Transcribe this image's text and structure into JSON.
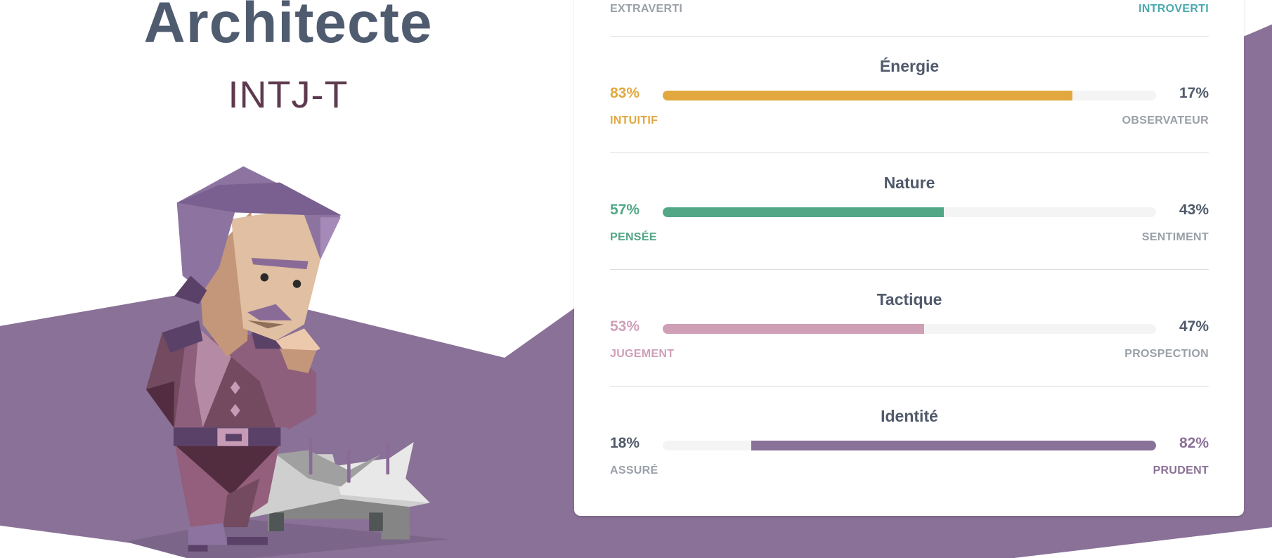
{
  "header": {
    "title": "Architecte",
    "code": "INTJ-T"
  },
  "colors": {
    "background": "#8a7197",
    "mind": "#4aa9ae",
    "energy": "#e2a83f",
    "nature": "#51a786",
    "tactics": "#cf9fb6",
    "identity": "#8a7197",
    "neutral": "#9aa0a8",
    "dark_text": "#505a6b"
  },
  "mind": {
    "left_label": "EXTRAVERTI",
    "right_label": "INTROVERTI"
  },
  "traits": [
    {
      "title": "Énergie",
      "left_pct": "83%",
      "right_pct": "17%",
      "left_label": "INTUITIF",
      "right_label": "OBSERVATEUR",
      "value": 83,
      "dominant": "left",
      "color": "#e2a83f"
    },
    {
      "title": "Nature",
      "left_pct": "57%",
      "right_pct": "43%",
      "left_label": "PENSÉE",
      "right_label": "SENTIMENT",
      "value": 57,
      "dominant": "left",
      "color": "#51a786"
    },
    {
      "title": "Tactique",
      "left_pct": "53%",
      "right_pct": "47%",
      "left_label": "JUGEMENT",
      "right_label": "PROSPECTION",
      "value": 53,
      "dominant": "left",
      "color": "#cf9fb6"
    },
    {
      "title": "Identité",
      "left_pct": "18%",
      "right_pct": "82%",
      "left_label": "ASSURÉ",
      "right_label": "PRUDENT",
      "value": 82,
      "dominant": "right",
      "color": "#8a7197"
    }
  ]
}
